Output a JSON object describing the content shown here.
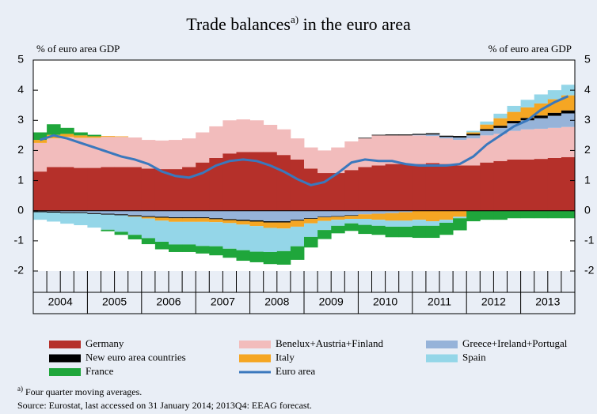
{
  "chart_data": {
    "type": "stacked_step_area",
    "title": "Trade balances",
    "title_sup": "a)",
    "title_rest": " in the euro area",
    "ylabel": "% of euro area GDP",
    "y2label": "% of euro area GDP",
    "categories": [
      "2004",
      "2005",
      "2006",
      "2007",
      "2008",
      "2009",
      "2010",
      "2011",
      "2012",
      "2013"
    ],
    "ylim": [
      -2,
      5
    ],
    "yticks": [
      -2,
      -1,
      0,
      1,
      2,
      3,
      4,
      5
    ],
    "y2lim": [
      -2,
      5
    ],
    "y2ticks": [
      -2,
      -1,
      0,
      1,
      2,
      3,
      4,
      5
    ],
    "series": [
      {
        "name": "Germany",
        "color": "#b5302a",
        "values": [
          [
            1.3,
            1.45,
            1.45,
            1.42
          ],
          [
            1.42,
            1.45,
            1.45,
            1.45
          ],
          [
            1.4,
            1.38,
            1.38,
            1.45
          ],
          [
            1.6,
            1.75,
            1.9,
            1.95
          ],
          [
            1.95,
            1.95,
            1.85,
            1.7
          ],
          [
            1.4,
            1.25,
            1.25,
            1.35
          ],
          [
            1.45,
            1.5,
            1.55,
            1.55
          ],
          [
            1.55,
            1.58,
            1.55,
            1.5
          ],
          [
            1.5,
            1.6,
            1.65,
            1.7
          ],
          [
            1.7,
            1.72,
            1.75,
            1.78
          ]
        ]
      },
      {
        "name": "Benelux+Austria+Finland",
        "color": "#f2bcbc",
        "values": [
          [
            0.95,
            0.95,
            1.0,
            1.0
          ],
          [
            1.0,
            1.0,
            1.0,
            0.98
          ],
          [
            0.95,
            0.95,
            0.97,
            0.95
          ],
          [
            1.0,
            1.05,
            1.1,
            1.08
          ],
          [
            1.05,
            0.9,
            0.85,
            0.7
          ],
          [
            0.7,
            0.75,
            0.85,
            0.95
          ],
          [
            0.95,
            1.0,
            0.95,
            0.95
          ],
          [
            0.95,
            0.9,
            0.85,
            0.85
          ],
          [
            0.9,
            0.9,
            0.9,
            0.95
          ],
          [
            1.0,
            1.0,
            1.0,
            1.0
          ]
        ]
      },
      {
        "name": "Greece+Ireland+Portugal",
        "color": "#96b3d9",
        "values": [
          [
            -0.02,
            -0.03,
            -0.05,
            -0.05
          ],
          [
            -0.08,
            -0.1,
            -0.12,
            -0.15
          ],
          [
            -0.18,
            -0.2,
            -0.22,
            -0.22
          ],
          [
            -0.22,
            -0.25,
            -0.28,
            -0.3
          ],
          [
            -0.32,
            -0.35,
            -0.35,
            -0.3
          ],
          [
            -0.25,
            -0.2,
            -0.18,
            -0.15
          ],
          [
            -0.12,
            -0.1,
            -0.08,
            -0.05
          ],
          [
            0.02,
            0.05,
            0.05,
            0.08
          ],
          [
            0.1,
            0.15,
            0.2,
            0.25
          ],
          [
            0.3,
            0.35,
            0.4,
            0.45
          ]
        ]
      },
      {
        "name": "New euro area countries",
        "color": "#000000",
        "values": [
          [
            -0.03,
            -0.03,
            -0.03,
            -0.03
          ],
          [
            -0.03,
            -0.03,
            -0.03,
            -0.03
          ],
          [
            -0.03,
            -0.03,
            -0.03,
            -0.03
          ],
          [
            -0.03,
            -0.03,
            -0.03,
            -0.04
          ],
          [
            -0.04,
            -0.04,
            -0.04,
            -0.03
          ],
          [
            -0.02,
            -0.02,
            -0.02,
            -0.02
          ],
          [
            0.02,
            0.02,
            0.03,
            0.03
          ],
          [
            0.03,
            0.04,
            0.04,
            0.05
          ],
          [
            0.05,
            0.06,
            0.07,
            0.08
          ],
          [
            0.08,
            0.09,
            0.1,
            0.1
          ]
        ]
      },
      {
        "name": "Italy",
        "color": "#f5a623",
        "values": [
          [
            0.1,
            0.12,
            0.1,
            0.08
          ],
          [
            0.05,
            0.03,
            0.02,
            -0.02
          ],
          [
            -0.05,
            -0.1,
            -0.12,
            -0.12
          ],
          [
            -0.12,
            -0.1,
            -0.1,
            -0.12
          ],
          [
            -0.15,
            -0.18,
            -0.2,
            -0.2
          ],
          [
            -0.15,
            -0.12,
            -0.1,
            -0.1
          ],
          [
            -0.15,
            -0.2,
            -0.25,
            -0.28
          ],
          [
            -0.3,
            -0.35,
            -0.3,
            -0.2
          ],
          [
            0.05,
            0.15,
            0.25,
            0.3
          ],
          [
            0.35,
            0.4,
            0.45,
            0.5
          ]
        ]
      },
      {
        "name": "Spain",
        "color": "#94d6e8",
        "values": [
          [
            -0.25,
            -0.3,
            -0.35,
            -0.4
          ],
          [
            -0.45,
            -0.5,
            -0.55,
            -0.6
          ],
          [
            -0.65,
            -0.7,
            -0.75,
            -0.75
          ],
          [
            -0.8,
            -0.8,
            -0.85,
            -0.85
          ],
          [
            -0.85,
            -0.8,
            -0.75,
            -0.65
          ],
          [
            -0.45,
            -0.3,
            -0.2,
            -0.15
          ],
          [
            -0.2,
            -0.2,
            -0.2,
            -0.2
          ],
          [
            -0.2,
            -0.15,
            -0.1,
            -0.05
          ],
          [
            0.05,
            0.1,
            0.15,
            0.2
          ],
          [
            0.25,
            0.3,
            0.3,
            0.35
          ]
        ]
      },
      {
        "name": "France",
        "color": "#1fa63b",
        "values": [
          [
            0.25,
            0.35,
            0.2,
            0.1
          ],
          [
            0.05,
            -0.05,
            -0.1,
            -0.15
          ],
          [
            -0.2,
            -0.25,
            -0.25,
            -0.25
          ],
          [
            -0.25,
            -0.3,
            -0.3,
            -0.35
          ],
          [
            -0.35,
            -0.4,
            -0.45,
            -0.45
          ],
          [
            -0.35,
            -0.3,
            -0.25,
            -0.25
          ],
          [
            -0.3,
            -0.3,
            -0.35,
            -0.35
          ],
          [
            -0.4,
            -0.4,
            -0.4,
            -0.4
          ],
          [
            -0.35,
            -0.3,
            -0.3,
            -0.25
          ],
          [
            -0.25,
            -0.25,
            -0.25,
            -0.25
          ]
        ]
      }
    ],
    "line": {
      "name": "Euro area",
      "color": "#3a78bd",
      "values": [
        [
          2.35,
          2.5,
          2.4,
          2.25
        ],
        [
          2.1,
          1.95,
          1.8,
          1.7
        ],
        [
          1.55,
          1.3,
          1.15,
          1.1
        ],
        [
          1.25,
          1.5,
          1.65,
          1.7
        ],
        [
          1.65,
          1.5,
          1.3,
          1.05
        ],
        [
          0.85,
          0.95,
          1.25,
          1.6
        ],
        [
          1.7,
          1.65,
          1.65,
          1.55
        ],
        [
          1.5,
          1.5,
          1.5,
          1.55
        ],
        [
          1.8,
          2.2,
          2.5,
          2.8
        ],
        [
          3.0,
          3.35,
          3.6,
          3.8
        ]
      ]
    },
    "footnote_marker": "a)",
    "footnote": " Four quarter moving averages.",
    "source": "Source: Eurostat, last accessed on 31 January 2014; 2013Q4: EEAG forecast."
  }
}
